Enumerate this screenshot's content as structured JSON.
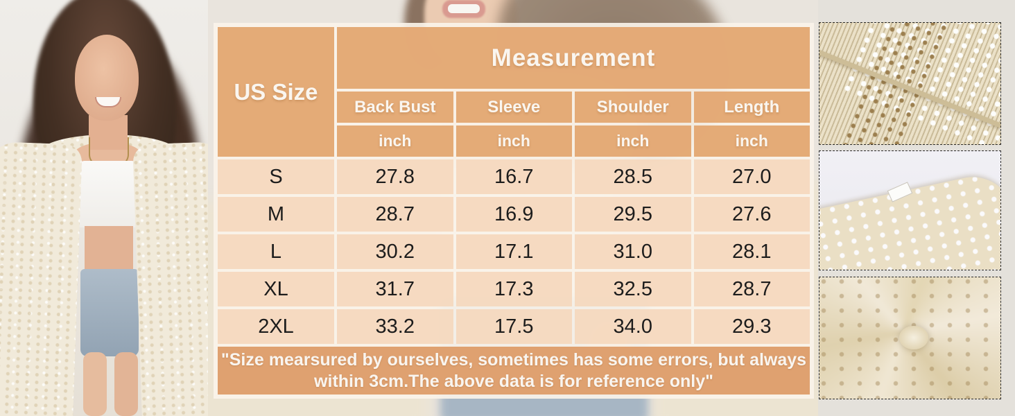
{
  "table": {
    "corner": "US Size",
    "title": "Measurement",
    "columns": [
      "Back Bust",
      "Sleeve",
      "Shoulder",
      "Length"
    ],
    "units": [
      "inch",
      "inch",
      "inch",
      "inch"
    ],
    "rows": [
      {
        "size": "S",
        "values": [
          "27.8",
          "16.7",
          "28.5",
          "27.0"
        ]
      },
      {
        "size": "M",
        "values": [
          "28.7",
          "16.9",
          "29.5",
          "27.6"
        ]
      },
      {
        "size": "L",
        "values": [
          "30.2",
          "17.1",
          "31.0",
          "28.1"
        ]
      },
      {
        "size": "XL",
        "values": [
          "31.7",
          "17.3",
          "32.5",
          "28.7"
        ]
      },
      {
        "size": "2XL",
        "values": [
          "33.2",
          "17.5",
          "34.0",
          "29.3"
        ]
      }
    ],
    "note_line1": "\"Size mearsured by ourselves, sometimes has some errors, but always",
    "note_line2": "within 3cm.The above data is for reference only\""
  },
  "colors": {
    "header_fill": "#E6AF80",
    "row_fill": "#F5D7BC",
    "note_fill": "#DE9D6B",
    "table_border": "#FAF3E9",
    "header_text": "#FAF6F0",
    "data_text": "#1C1C1C",
    "page_bg": "#E4E1DB"
  },
  "chart_data": {
    "type": "table",
    "title": "Measurement",
    "row_header": "US Size",
    "columns": [
      "Back Bust",
      "Sleeve",
      "Shoulder",
      "Length"
    ],
    "unit": "inch",
    "rows": [
      [
        "S",
        27.8,
        16.7,
        28.5,
        27.0
      ],
      [
        "M",
        28.7,
        16.9,
        29.5,
        27.6
      ],
      [
        "L",
        30.2,
        17.1,
        31.0,
        28.1
      ],
      [
        "XL",
        31.7,
        17.3,
        32.5,
        28.7
      ],
      [
        "2XL",
        33.2,
        17.5,
        34.0,
        29.3
      ]
    ],
    "note": "\"Size mearsured by ourselves, sometimes has some errors, but always within 3cm.The above data is for reference only\""
  }
}
